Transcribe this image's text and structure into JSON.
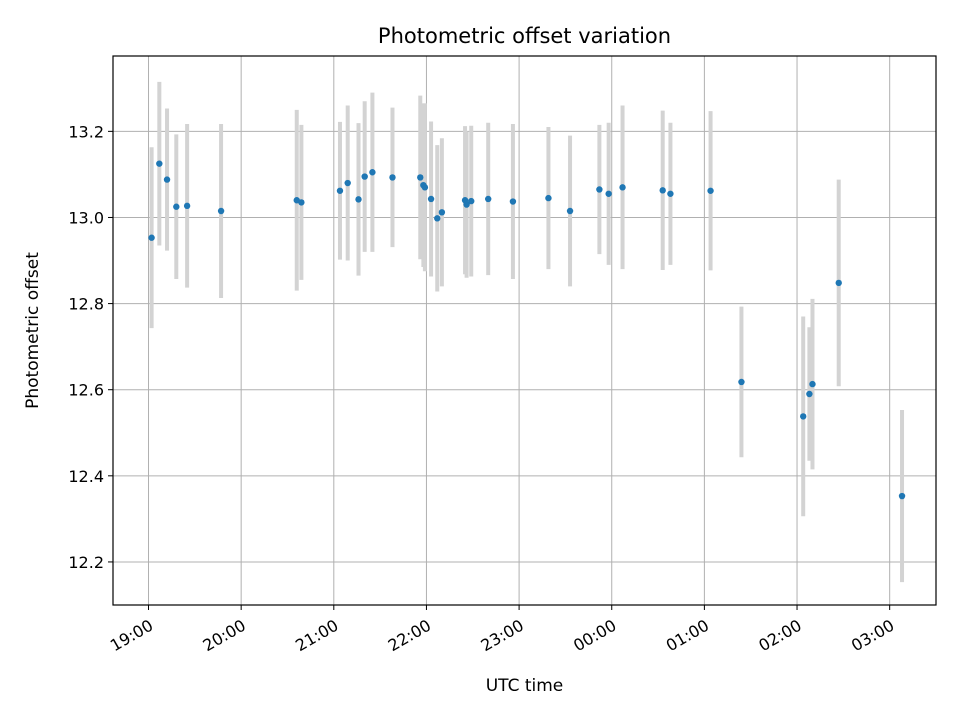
{
  "chart_data": {
    "type": "scatter",
    "title": "Photometric offset variation",
    "xlabel": "UTC time",
    "ylabel": "Photometric offset",
    "x_ticks": [
      "19:00",
      "20:00",
      "21:00",
      "22:00",
      "23:00",
      "00:00",
      "01:00",
      "02:00",
      "03:00"
    ],
    "y_ticks": [
      12.2,
      12.4,
      12.6,
      12.8,
      13.0,
      13.2
    ],
    "xlim": [
      "18:37",
      "03:30"
    ],
    "ylim": [
      12.1,
      13.375
    ],
    "grid": true,
    "colors": {
      "point": "#1f77b4",
      "errorbar": "#d3d3d3",
      "grid": "#b0b0b0"
    },
    "points": [
      {
        "x": "19:02",
        "y": 12.953,
        "yerr": 0.21
      },
      {
        "x": "19:07",
        "y": 13.125,
        "yerr": 0.19
      },
      {
        "x": "19:12",
        "y": 13.088,
        "yerr": 0.165
      },
      {
        "x": "19:18",
        "y": 13.025,
        "yerr": 0.168
      },
      {
        "x": "19:25",
        "y": 13.027,
        "yerr": 0.19
      },
      {
        "x": "19:47",
        "y": 13.015,
        "yerr": 0.202
      },
      {
        "x": "20:36",
        "y": 13.04,
        "yerr": 0.21
      },
      {
        "x": "20:39",
        "y": 13.035,
        "yerr": 0.18
      },
      {
        "x": "21:04",
        "y": 13.062,
        "yerr": 0.16
      },
      {
        "x": "21:09",
        "y": 13.08,
        "yerr": 0.18
      },
      {
        "x": "21:16",
        "y": 13.042,
        "yerr": 0.177
      },
      {
        "x": "21:20",
        "y": 13.095,
        "yerr": 0.175
      },
      {
        "x": "21:25",
        "y": 13.105,
        "yerr": 0.185
      },
      {
        "x": "21:38",
        "y": 13.093,
        "yerr": 0.162
      },
      {
        "x": "21:56",
        "y": 13.093,
        "yerr": 0.19
      },
      {
        "x": "21:58",
        "y": 13.075,
        "yerr": 0.19
      },
      {
        "x": "21:59",
        "y": 13.07,
        "yerr": 0.195
      },
      {
        "x": "22:03",
        "y": 13.043,
        "yerr": 0.18
      },
      {
        "x": "22:07",
        "y": 12.998,
        "yerr": 0.17
      },
      {
        "x": "22:10",
        "y": 13.012,
        "yerr": 0.172
      },
      {
        "x": "22:25",
        "y": 13.04,
        "yerr": 0.172
      },
      {
        "x": "22:26",
        "y": 13.03,
        "yerr": 0.17
      },
      {
        "x": "22:29",
        "y": 13.038,
        "yerr": 0.175
      },
      {
        "x": "22:40",
        "y": 13.043,
        "yerr": 0.177
      },
      {
        "x": "22:56",
        "y": 13.037,
        "yerr": 0.18
      },
      {
        "x": "23:19",
        "y": 13.045,
        "yerr": 0.165
      },
      {
        "x": "23:33",
        "y": 13.015,
        "yerr": 0.175
      },
      {
        "x": "23:52",
        "y": 13.065,
        "yerr": 0.15
      },
      {
        "x": "23:58",
        "y": 13.055,
        "yerr": 0.165
      },
      {
        "x": "00:07",
        "y": 13.07,
        "yerr": 0.19
      },
      {
        "x": "00:33",
        "y": 13.063,
        "yerr": 0.185
      },
      {
        "x": "00:38",
        "y": 13.055,
        "yerr": 0.165
      },
      {
        "x": "01:04",
        "y": 13.062,
        "yerr": 0.185
      },
      {
        "x": "01:24",
        "y": 12.618,
        "yerr": 0.175
      },
      {
        "x": "02:04",
        "y": 12.538,
        "yerr": 0.232
      },
      {
        "x": "02:08",
        "y": 12.59,
        "yerr": 0.155
      },
      {
        "x": "02:10",
        "y": 12.613,
        "yerr": 0.198
      },
      {
        "x": "02:27",
        "y": 12.848,
        "yerr": 0.24
      },
      {
        "x": "03:08",
        "y": 12.353,
        "yerr": 0.2
      }
    ]
  }
}
